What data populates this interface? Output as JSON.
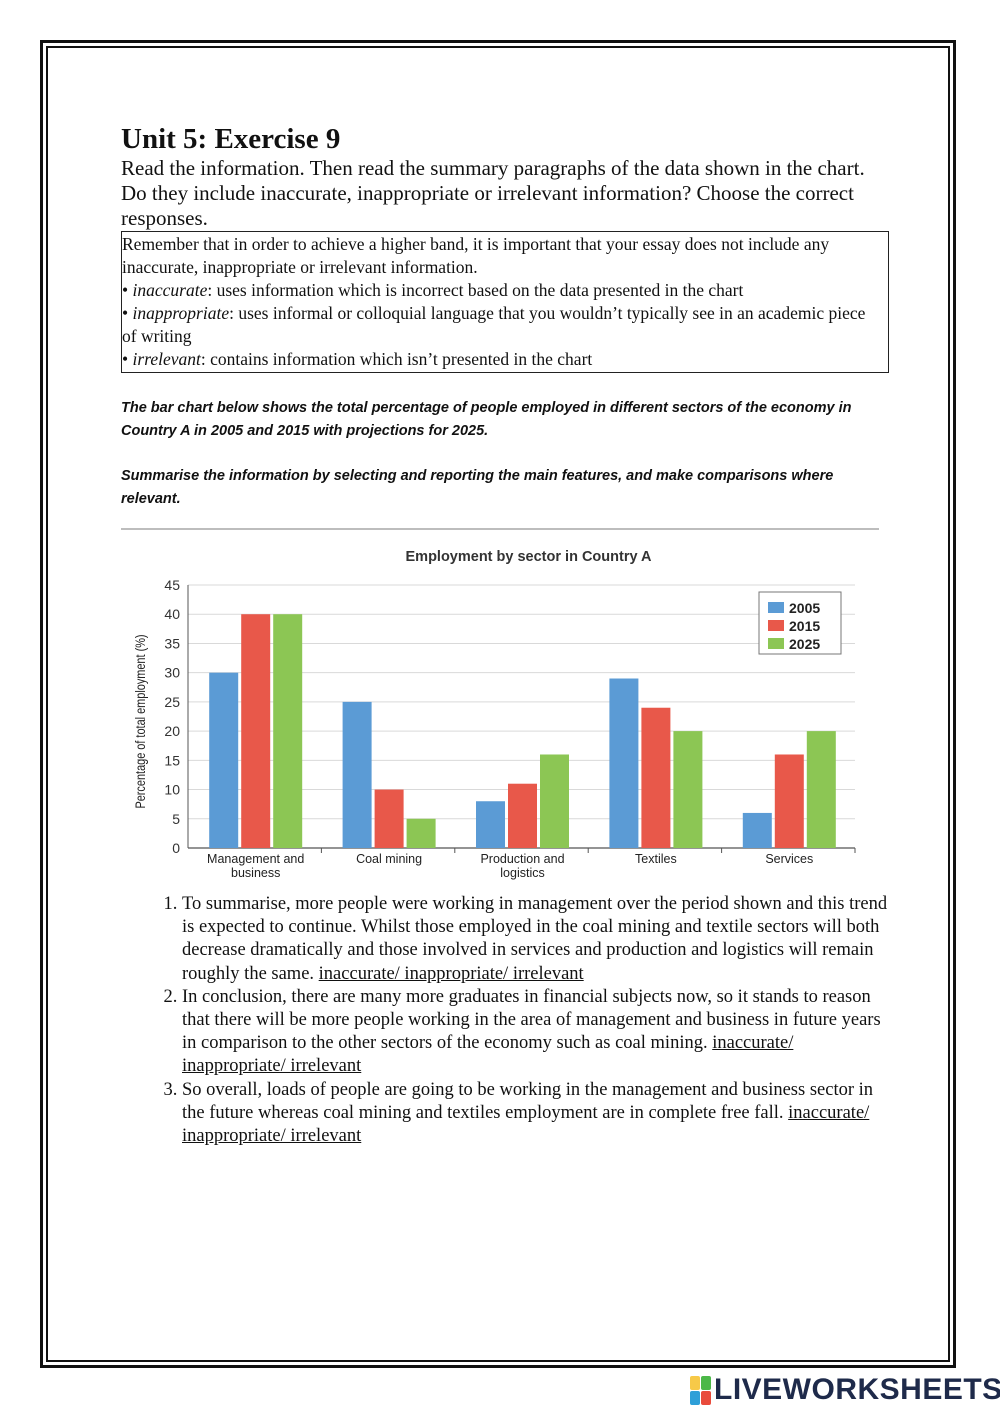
{
  "heading": "Unit 5: Exercise 9",
  "instruction": "Read the information. Then read the summary paragraphs of the data shown in the chart. Do they include inaccurate, inappropriate or irrelevant information? Choose the correct responses.",
  "info_box": {
    "intro": "Remember that in order to achieve a higher band, it is important that your essay does not include any inaccurate, inappropriate or irrelevant information.",
    "items": [
      {
        "term": "inaccurate",
        "text": ": uses information which is incorrect based on the data presented in the chart"
      },
      {
        "term": "inappropriate",
        "text": ": uses informal or colloquial language that you wouldn’t typically see in an academic piece of writing"
      },
      {
        "term": "irrelevant",
        "text": ": contains information which isn’t presented in the chart"
      }
    ]
  },
  "task": {
    "line1": "The bar chart below shows the total percentage of people employed in different sectors of the economy in Country A in 2005 and 2015 with projections for 2025.",
    "line2": "Summarise the information by selecting and reporting the main features, and make comparisons where relevant."
  },
  "chart_data": {
    "type": "bar",
    "title": "Employment by sector in Country A",
    "ylabel": "Percentage of total employment (%)",
    "xlabel": "",
    "ylim": [
      0,
      45
    ],
    "yticks": [
      "0",
      "5",
      "10",
      "15",
      "20",
      "25",
      "30",
      "35",
      "40",
      "45"
    ],
    "categories": [
      [
        "Management and",
        "business"
      ],
      [
        "Coal mining"
      ],
      [
        "Production and",
        "logistics"
      ],
      [
        "Textiles"
      ],
      [
        "Services"
      ]
    ],
    "series": [
      {
        "name": "2005",
        "color": "#5b9bd5",
        "values": [
          30,
          25,
          8,
          29,
          6
        ]
      },
      {
        "name": "2015",
        "color": "#e8584a",
        "values": [
          40,
          10,
          11,
          24,
          16
        ]
      },
      {
        "name": "2025",
        "color": "#8cc654",
        "values": [
          40,
          5,
          16,
          20,
          20
        ]
      }
    ],
    "grid": true,
    "legend": "top-right"
  },
  "answers": [
    {
      "text": "To summarise, more people were working in management over the period shown and this trend is expected to continue. Whilst those employed in the coal mining and textile sectors will both decrease dramatically and those involved in services and production and logistics will remain roughly the same. ",
      "choices": "inaccurate/ inappropriate/ irrelevant"
    },
    {
      "text": "In conclusion, there are many more graduates in financial subjects now, so it stands to reason that there will be more people working in the area of management and business in future years in comparison to the other sectors of the economy such as coal mining. ",
      "choices": "inaccurate/ inappropriate/ irrelevant"
    },
    {
      "text": "So overall, loads of people are going to be working in the management and business sector in the future whereas coal mining and textiles employment are in complete free fall. ",
      "choices": "inaccurate/ inappropriate/ irrelevant"
    }
  ],
  "logo": {
    "text": "LIVEWORKSHEETS",
    "colors": [
      "#f7c948",
      "#4cb848",
      "#2e9fd8",
      "#e94b3c"
    ]
  }
}
